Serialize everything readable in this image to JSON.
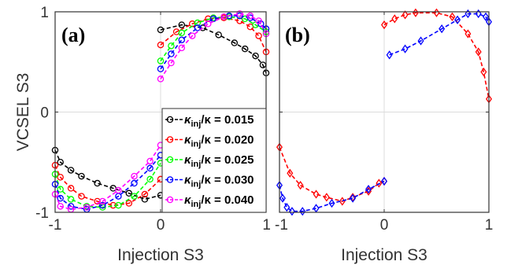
{
  "chart_data": [
    {
      "panel": "(a)",
      "type": "line",
      "xlabel": "Injection S3",
      "ylabel": "VCSEL S3",
      "xlim": [
        -1,
        1
      ],
      "ylim": [
        -1,
        1
      ],
      "xticks": [
        "-1",
        "0",
        "1"
      ],
      "yticks": [
        "-1",
        "0",
        "1"
      ],
      "grid": true,
      "legend_position": "lower-right",
      "series": [
        {
          "name": "κinj/κ = 0.015",
          "label_main": "κ",
          "label_sub": "inj",
          "label_rest": "/κ = 0.015",
          "color": "#000000",
          "marker": "circle",
          "segments": [
            {
              "x": [
                -1.0,
                -0.95,
                -0.85,
                -0.75,
                -0.6,
                -0.45,
                -0.3,
                -0.15,
                0.0
              ],
              "y": [
                -0.38,
                -0.5,
                -0.58,
                -0.64,
                -0.71,
                -0.76,
                -0.81,
                -0.87,
                -0.83
              ]
            },
            {
              "x": [
                0.0,
                0.2,
                0.4,
                0.55,
                0.7,
                0.8,
                0.9,
                0.97,
                1.0
              ],
              "y": [
                0.82,
                0.87,
                0.84,
                0.77,
                0.69,
                0.63,
                0.56,
                0.47,
                0.39
              ]
            }
          ]
        },
        {
          "name": "κinj/κ = 0.020",
          "label_main": "κ",
          "label_sub": "inj",
          "label_rest": "/κ = 0.020",
          "color": "#ff0000",
          "marker": "circle",
          "segments": [
            {
              "x": [
                -1.0,
                -0.95,
                -0.85,
                -0.75,
                -0.6,
                -0.45,
                -0.3,
                -0.15,
                0.0
              ],
              "y": [
                -0.53,
                -0.65,
                -0.76,
                -0.84,
                -0.89,
                -0.93,
                -0.91,
                -0.82,
                -0.67
              ]
            },
            {
              "x": [
                0.0,
                0.15,
                0.3,
                0.45,
                0.6,
                0.75,
                0.85,
                0.93,
                1.0
              ],
              "y": [
                0.67,
                0.8,
                0.88,
                0.93,
                0.94,
                0.91,
                0.85,
                0.76,
                0.6
              ]
            }
          ]
        },
        {
          "name": "κinj/κ = 0.025",
          "label_main": "κ",
          "label_sub": "inj",
          "label_rest": "/κ = 0.025",
          "color": "#00ff00",
          "marker": "circle",
          "segments": [
            {
              "x": [
                -1.0,
                -0.95,
                -0.85,
                -0.7,
                -0.55,
                -0.4,
                -0.25,
                -0.1,
                0.0
              ],
              "y": [
                -0.62,
                -0.77,
                -0.87,
                -0.94,
                -0.95,
                -0.93,
                -0.84,
                -0.67,
                -0.51
              ]
            },
            {
              "x": [
                0.0,
                0.1,
                0.2,
                0.35,
                0.5,
                0.65,
                0.8,
                0.9,
                1.0
              ],
              "y": [
                0.51,
                0.66,
                0.79,
                0.89,
                0.94,
                0.95,
                0.93,
                0.87,
                0.8
              ]
            }
          ]
        },
        {
          "name": "κinj/κ = 0.030",
          "label_main": "κ",
          "label_sub": "inj",
          "label_rest": "/κ = 0.030",
          "color": "#0000ff",
          "marker": "circle",
          "segments": [
            {
              "x": [
                -1.0,
                -0.95,
                -0.85,
                -0.7,
                -0.55,
                -0.4,
                -0.25,
                -0.1,
                0.0
              ],
              "y": [
                -0.72,
                -0.86,
                -0.94,
                -0.97,
                -0.93,
                -0.84,
                -0.71,
                -0.56,
                -0.43
              ]
            },
            {
              "x": [
                0.0,
                0.1,
                0.2,
                0.35,
                0.5,
                0.65,
                0.75,
                0.85,
                0.95,
                1.0
              ],
              "y": [
                0.43,
                0.58,
                0.72,
                0.84,
                0.93,
                0.96,
                0.96,
                0.94,
                0.88,
                0.83
              ]
            }
          ]
        },
        {
          "name": "κinj/κ = 0.040",
          "label_main": "κ",
          "label_sub": "inj",
          "label_rest": "/κ = 0.040",
          "color": "#ff00ff",
          "marker": "circle",
          "segments": [
            {
              "x": [
                -1.0,
                -0.95,
                -0.85,
                -0.7,
                -0.55,
                -0.4,
                -0.25,
                -0.1,
                0.0
              ],
              "y": [
                -0.82,
                -0.94,
                -0.97,
                -0.95,
                -0.89,
                -0.78,
                -0.64,
                -0.49,
                -0.33
              ]
            },
            {
              "x": [
                0.0,
                0.1,
                0.2,
                0.3,
                0.45,
                0.6,
                0.75,
                0.85,
                0.93,
                1.0
              ],
              "y": [
                0.33,
                0.49,
                0.64,
                0.76,
                0.88,
                0.95,
                0.98,
                0.96,
                0.91,
                0.78
              ]
            }
          ]
        }
      ]
    },
    {
      "panel": "(b)",
      "type": "line",
      "xlabel": "Injection S3",
      "ylabel": "",
      "xlim": [
        -1,
        1
      ],
      "ylim": [
        -1,
        1
      ],
      "xticks": [
        "-1",
        "0",
        "1"
      ],
      "yticks": [],
      "grid": true,
      "series": [
        {
          "name": "",
          "color": "#ff0000",
          "marker": "diamond",
          "segments": [
            {
              "x": [
                -1.0,
                -0.9,
                -0.8,
                -0.65,
                -0.55,
                -0.4,
                -0.3,
                -0.15,
                -0.05,
                0.0
              ],
              "y": [
                -0.35,
                -0.61,
                -0.73,
                -0.82,
                -0.85,
                -0.89,
                -0.85,
                -0.79,
                -0.71,
                -0.69
              ]
            },
            {
              "x": [
                0.0,
                0.1,
                0.2,
                0.3,
                0.5,
                0.65,
                0.8,
                0.9,
                0.95,
                1.0
              ],
              "y": [
                0.87,
                0.93,
                0.97,
                0.99,
                0.99,
                0.95,
                0.78,
                0.6,
                0.4,
                0.13
              ]
            }
          ]
        },
        {
          "name": "",
          "color": "#0000ff",
          "marker": "diamond",
          "segments": [
            {
              "x": [
                -1.0,
                -0.97,
                -0.93,
                -0.88,
                -0.78,
                -0.65,
                -0.5,
                -0.3,
                -0.15,
                0.0
              ],
              "y": [
                -0.73,
                -0.86,
                -0.95,
                -0.99,
                -0.99,
                -0.96,
                -0.91,
                -0.86,
                -0.77,
                -0.69
              ]
            },
            {
              "x": [
                0.05,
                0.2,
                0.35,
                0.55,
                0.7,
                0.8,
                0.9,
                0.97,
                1.0
              ],
              "y": [
                0.57,
                0.63,
                0.71,
                0.83,
                0.92,
                0.98,
                0.98,
                0.95,
                0.9
              ]
            }
          ]
        }
      ]
    }
  ]
}
